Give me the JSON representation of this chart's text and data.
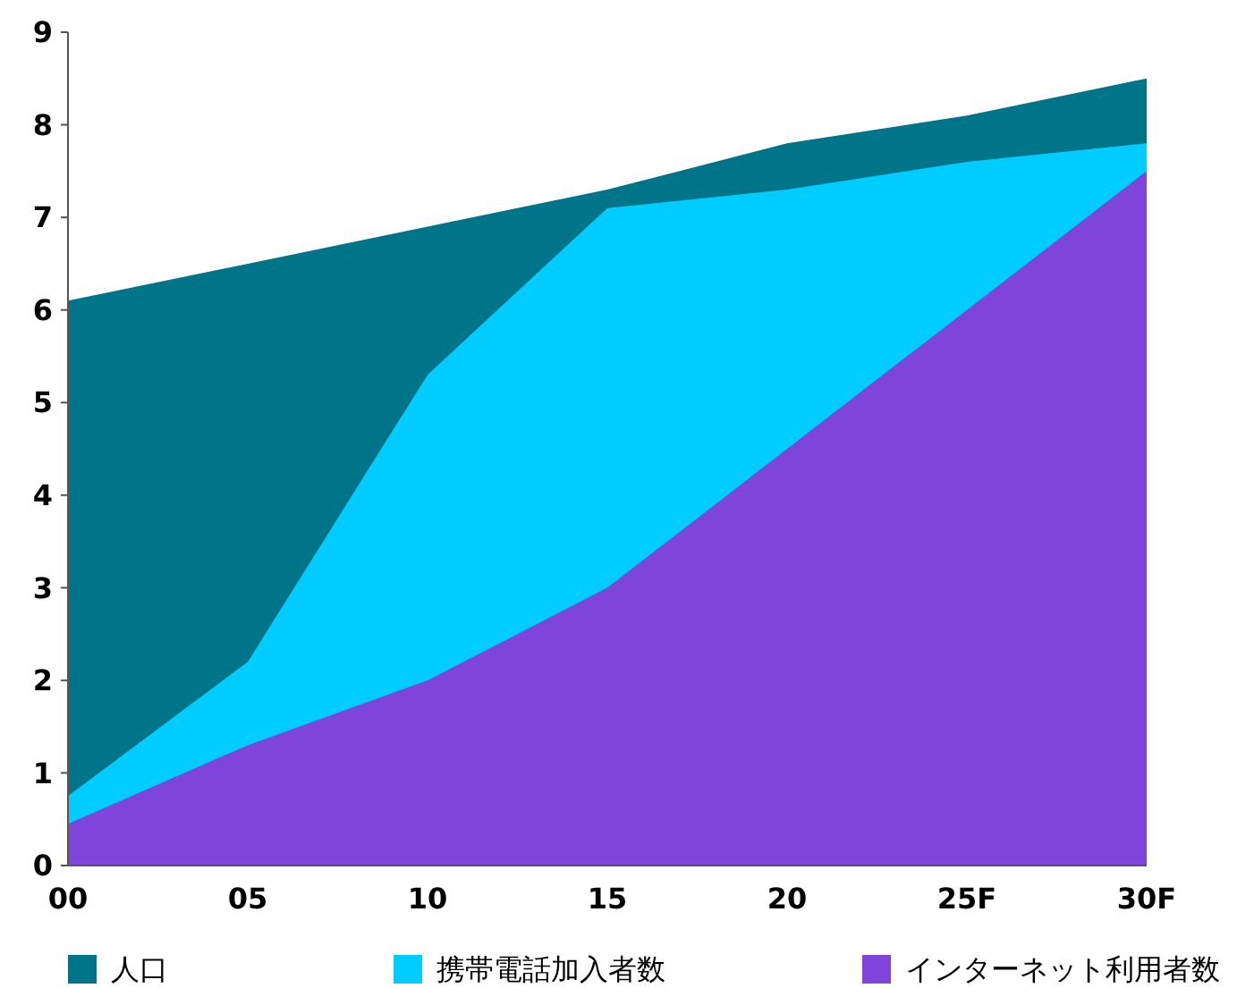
{
  "chart_data": {
    "type": "area",
    "categories": [
      "00",
      "05",
      "10",
      "15",
      "20",
      "25F",
      "30F"
    ],
    "series": [
      {
        "name": "人口",
        "color": "#007489",
        "values": [
          6.1,
          6.5,
          6.9,
          7.3,
          7.8,
          8.1,
          8.5
        ]
      },
      {
        "name": "携帯電話加入者数",
        "color": "#00ccff",
        "values": [
          0.75,
          2.2,
          5.3,
          7.1,
          7.3,
          7.6,
          7.8
        ]
      },
      {
        "name": "インターネット利用者数",
        "color": "#7f45db",
        "values": [
          0.45,
          1.3,
          2.0,
          3.0,
          4.5,
          6.0,
          7.5
        ]
      }
    ],
    "ylim": [
      0,
      9
    ],
    "yticks": [
      0,
      1,
      2,
      3,
      4,
      5,
      6,
      7,
      8,
      9
    ],
    "legend": "bottom"
  }
}
